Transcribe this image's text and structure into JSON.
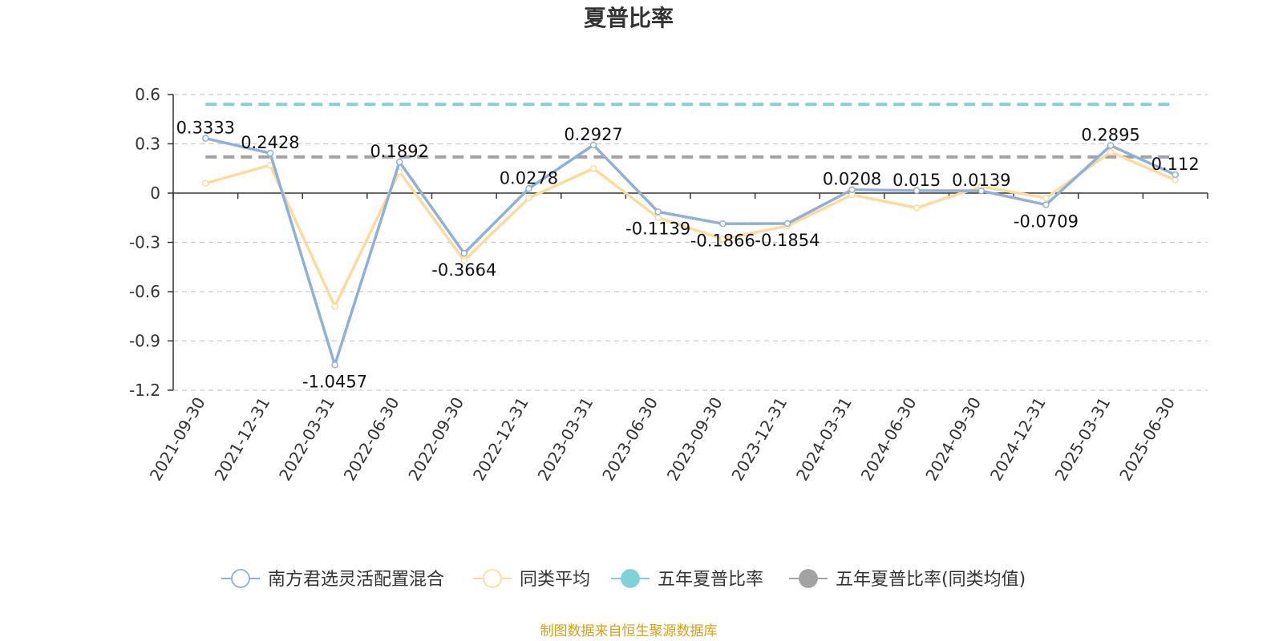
{
  "chart_data": {
    "type": "line",
    "title": "夏普比率",
    "categories": [
      "2021-09-30",
      "2021-12-31",
      "2022-03-31",
      "2022-06-30",
      "2022-09-30",
      "2022-12-31",
      "2023-03-31",
      "2023-06-30",
      "2023-09-30",
      "2023-12-31",
      "2024-03-31",
      "2024-06-30",
      "2024-09-30",
      "2024-12-31",
      "2025-03-31",
      "2025-06-30"
    ],
    "y_ticks": [
      "0.6",
      "0.3",
      "0",
      "-0.3",
      "-0.6",
      "-0.9",
      "-1.2"
    ],
    "ylim": [
      -1.2,
      0.6
    ],
    "grid": "horizontal dashed",
    "legend_position": "bottom",
    "series": [
      {
        "name": "南方君选灵活配置混合",
        "color": "#8eb0da",
        "values": [
          0.3333,
          0.2428,
          -1.0457,
          0.1892,
          -0.3664,
          0.0278,
          0.2927,
          -0.1139,
          -0.1866,
          -0.1854,
          0.0208,
          0.015,
          0.0139,
          -0.0709,
          0.2895,
          0.112
        ],
        "labels": [
          "0.3333",
          "0.2428",
          "-1.0457",
          "0.1892",
          "-0.3664",
          "0.0278",
          "0.2927",
          "-0.1139",
          "-0.1866",
          "-0.1854",
          "0.0208",
          "0.015",
          "0.0139",
          "-0.0709",
          "0.2895",
          "0.112"
        ]
      },
      {
        "name": "同类平均",
        "color": "#fddb9a",
        "values": [
          0.06,
          0.17,
          -0.69,
          0.13,
          -0.41,
          -0.03,
          0.15,
          -0.15,
          -0.28,
          -0.2,
          -0.01,
          -0.09,
          0.04,
          -0.03,
          0.25,
          0.08
        ]
      }
    ],
    "reference_lines": [
      {
        "name": "五年夏普比率",
        "color": "#7fd3d6",
        "value": 0.54
      },
      {
        "name": "五年夏普比率(同类均值)",
        "color": "#a3a3a3",
        "value": 0.22
      }
    ]
  },
  "source_text": "制图数据来自恒生聚源数据库"
}
